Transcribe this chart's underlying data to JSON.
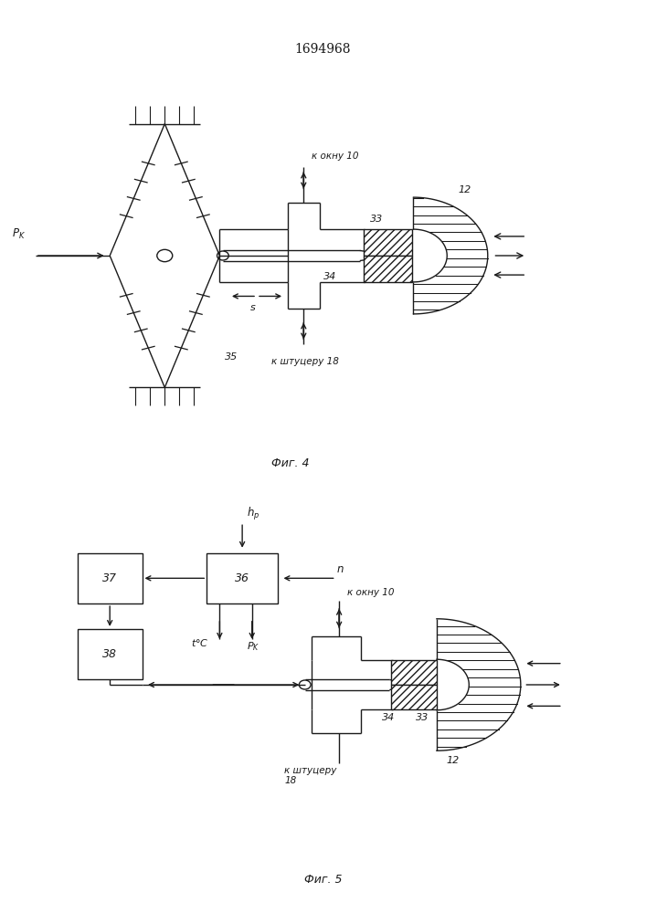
{
  "title": "1694968",
  "fig4_caption": "Фиг. 4",
  "fig5_caption": "Фиг. 5",
  "bg_color": "#ffffff",
  "line_color": "#1a1a1a",
  "lw": 1.0,
  "fig_width": 7.07,
  "fig_height": 10.0
}
